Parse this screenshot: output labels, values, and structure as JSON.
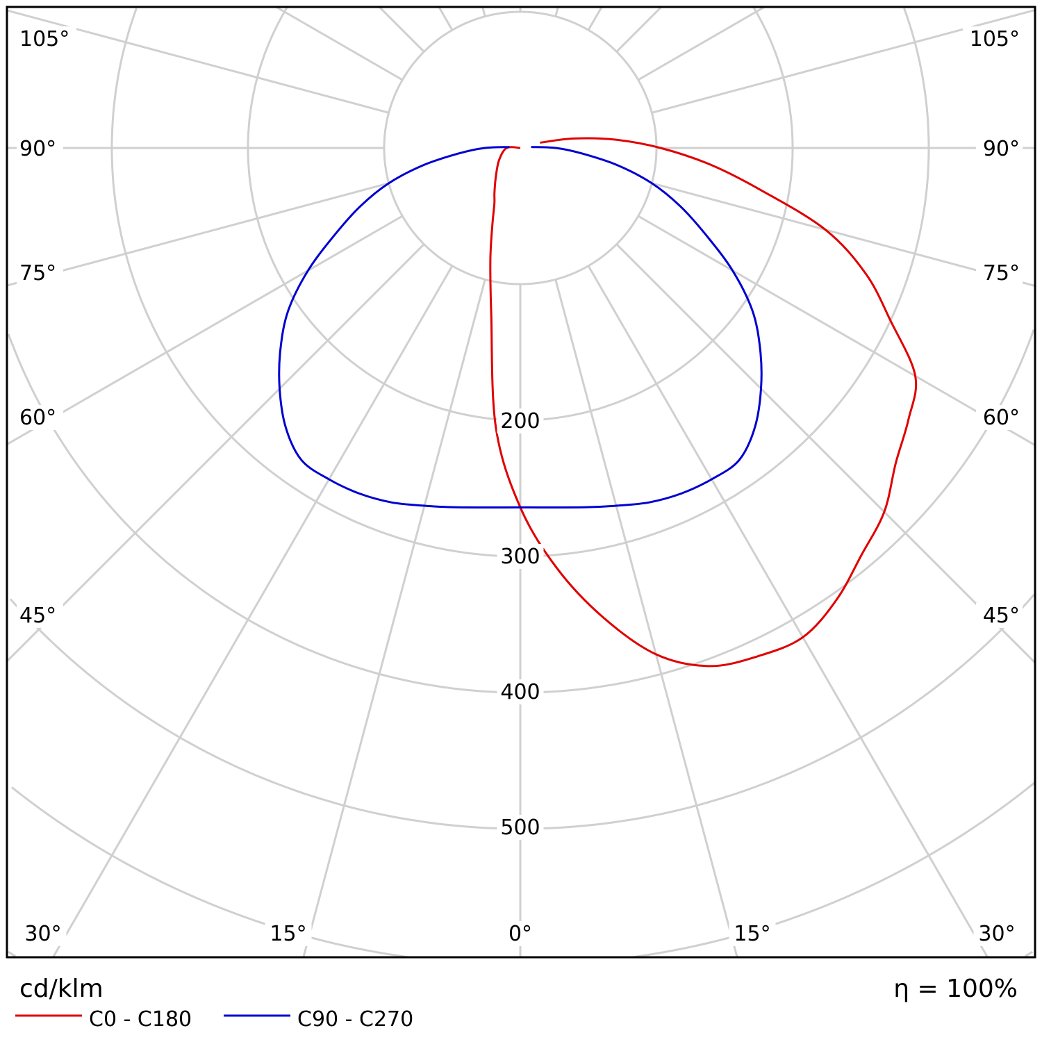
{
  "chart_data": {
    "type": "polar",
    "unit_label": "cd/klm",
    "efficiency_label": "η = 100%",
    "radial_ticks": [
      100,
      200,
      300,
      400,
      500,
      600,
      700,
      800,
      900
    ],
    "radial_tick_labels": [
      "200",
      "300",
      "400",
      "500"
    ],
    "angle_step_deg": 15,
    "angle_labels": {
      "side": [
        "105°",
        "90°",
        "75°",
        "60°",
        "45°"
      ],
      "bottom": [
        "30°",
        "15°",
        "0°",
        "15°",
        "30°"
      ]
    },
    "grid": true,
    "legend_position": "bottom-left",
    "series": [
      {
        "name": "C0 - C180",
        "color": "#e00000",
        "right_C0": {
          "angles": [
            0,
            5,
            10,
            15,
            20,
            25,
            30,
            35,
            40,
            45,
            50,
            55,
            60,
            65,
            70,
            75,
            80,
            85,
            90,
            95,
            100,
            105
          ],
          "values": [
            264,
            310,
            350,
            385,
            405,
            412,
            415,
            405,
            390,
            378,
            360,
            348,
            335,
            300,
            270,
            232,
            180,
            140,
            103,
            70,
            40,
            15
          ]
        },
        "left_C180": {
          "angles": [
            0,
            5,
            10,
            15,
            20,
            25,
            30,
            40,
            60,
            90,
            105
          ],
          "values": [
            264,
            206,
            123,
            85,
            60,
            45,
            38,
            28,
            18,
            10,
            0
          ]
        }
      },
      {
        "name": "C90 - C270",
        "color": "#0000d0",
        "right_C90": {
          "angles": [
            0,
            10,
            15,
            20,
            25,
            30,
            35,
            40,
            45,
            50,
            55,
            60,
            65,
            70,
            75,
            80,
            85,
            90,
            95
          ],
          "values": [
            264,
            268,
            272,
            277,
            280,
            281,
            280,
            268,
            250,
            230,
            208,
            180,
            150,
            125,
            100,
            72,
            45,
            26,
            8
          ]
        },
        "left_C270": {
          "angles": [
            0,
            10,
            15,
            20,
            25,
            30,
            35,
            40,
            45,
            50,
            55,
            60,
            65,
            70,
            75,
            80,
            85,
            90,
            95
          ],
          "values": [
            264,
            268,
            272,
            277,
            280,
            281,
            280,
            268,
            250,
            230,
            208,
            180,
            150,
            125,
            100,
            72,
            45,
            26,
            8
          ]
        }
      }
    ]
  }
}
